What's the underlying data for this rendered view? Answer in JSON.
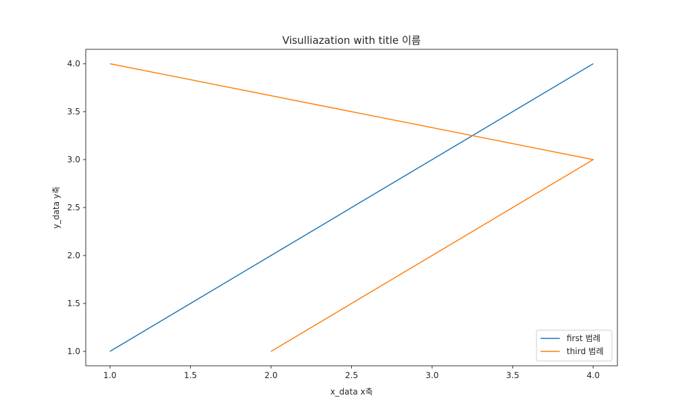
{
  "chart_data": {
    "type": "line",
    "title": "Visulliazation with title 이름",
    "xlabel": "x_data x축",
    "ylabel": "y_data y축",
    "xlim": [
      0.85,
      4.15
    ],
    "ylim": [
      0.85,
      4.15
    ],
    "xticks": [
      1.0,
      1.5,
      2.0,
      2.5,
      3.0,
      3.5,
      4.0
    ],
    "yticks": [
      1.0,
      1.5,
      2.0,
      2.5,
      3.0,
      3.5,
      4.0
    ],
    "xtick_labels": [
      "1.0",
      "1.5",
      "2.0",
      "2.5",
      "3.0",
      "3.5",
      "4.0"
    ],
    "ytick_labels": [
      "1.0",
      "1.5",
      "2.0",
      "2.5",
      "3.0",
      "3.5",
      "4.0"
    ],
    "grid": false,
    "legend_position": "lower-right",
    "series": [
      {
        "name": "first 범례",
        "color": "#1f77b4",
        "x": [
          1,
          4
        ],
        "y": [
          1,
          4
        ]
      },
      {
        "name": "third 범례",
        "color": "#ff7f0e",
        "x": [
          1,
          4,
          2
        ],
        "y": [
          4,
          3,
          1
        ]
      }
    ]
  }
}
